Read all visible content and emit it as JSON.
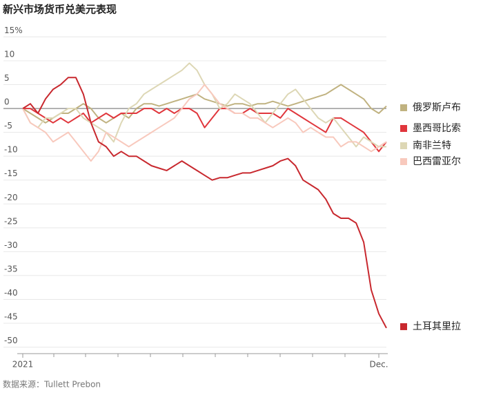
{
  "chart_data": {
    "type": "line",
    "title": "新兴市场货币兑美元表现",
    "source": "数据来源：Tullett Prebon",
    "categories": [
      "2021",
      null,
      null,
      null,
      null,
      null,
      null,
      null,
      null,
      null,
      null,
      null,
      null,
      null,
      null,
      null,
      null,
      null,
      null,
      null,
      null,
      null,
      null,
      null,
      null,
      null,
      null,
      null,
      null,
      null,
      null,
      null,
      null,
      null,
      null,
      null,
      null,
      null,
      null,
      null,
      null,
      null,
      null,
      null,
      null,
      null,
      null,
      "Dec.",
      null
    ],
    "ylim": [
      -51,
      17
    ],
    "yticks": [
      {
        "value": 15,
        "label": "15%"
      },
      10,
      5,
      0,
      -5,
      -10,
      -15,
      -20,
      -25,
      -30,
      -35,
      -40,
      -45,
      -50
    ],
    "grid": true,
    "series": [
      {
        "name": "俄罗斯卢布",
        "color": "#c0b280",
        "values": [
          0,
          -1,
          -2,
          -3,
          -2,
          -1,
          -1,
          0,
          1,
          0,
          -2,
          -3,
          -2,
          -1,
          -2,
          0,
          1,
          1,
          0.5,
          1,
          1.5,
          2,
          2.5,
          3,
          2,
          1.5,
          1,
          0.5,
          1,
          1,
          0.5,
          1,
          1,
          1.5,
          1,
          0.5,
          1,
          1.5,
          2,
          2.5,
          3,
          4,
          5,
          4,
          3,
          2,
          0,
          -1,
          0.5
        ]
      },
      {
        "name": "墨西哥比索",
        "color": "#e0363c",
        "values": [
          0,
          0,
          -1,
          -2,
          -3,
          -2,
          -3,
          -2,
          -1,
          -3,
          -2,
          -1,
          -2,
          -1,
          -1,
          -1,
          0,
          0,
          -1,
          0,
          -1,
          0,
          0,
          -1,
          -4,
          -2,
          0,
          0,
          -1,
          -1,
          0,
          -1,
          -1,
          -1,
          -2,
          0,
          -1,
          -2,
          -3,
          -4,
          -5,
          -2,
          -2,
          -3,
          -4,
          -5,
          -7,
          -9,
          -7
        ]
      },
      {
        "name": "南非兰特",
        "color": "#ddd7b5",
        "values": [
          0,
          -3,
          -4,
          -2,
          -2,
          -1,
          0,
          0,
          -2,
          -3,
          -4,
          -5,
          -7,
          -3,
          0,
          1,
          3,
          4,
          5,
          6,
          7,
          8,
          9.5,
          8,
          5,
          3,
          0,
          1,
          3,
          2,
          1,
          -1,
          -3,
          -1,
          1,
          3,
          4,
          2,
          0,
          -2,
          -3,
          -2,
          -4,
          -6,
          -8,
          -6,
          -7,
          -8,
          -8
        ]
      },
      {
        "name": "巴西雷亚尔",
        "color": "#f8c9bd",
        "values": [
          0,
          -3,
          -4,
          -5,
          -7,
          -6,
          -5,
          -7,
          -9,
          -11,
          -9,
          -5,
          -6,
          -7,
          -8,
          -7,
          -6,
          -5,
          -4,
          -3,
          -2,
          0,
          2,
          3,
          5,
          3,
          1,
          0,
          -1,
          -1,
          -2,
          -2,
          -3,
          -4,
          -3,
          -2,
          -3,
          -5,
          -4,
          -5,
          -6,
          -6,
          -8,
          -7,
          -7,
          -8,
          -9,
          -8,
          -7
        ]
      },
      {
        "name": "土耳其里拉",
        "color": "#c8282e",
        "values": [
          0,
          1,
          -1,
          2,
          4,
          5,
          6.5,
          6.5,
          3,
          -3,
          -7,
          -8,
          -10,
          -9,
          -10,
          -10,
          -11,
          -12,
          -12.5,
          -13,
          -12,
          -11,
          -12,
          -13,
          -14,
          -15,
          -14.5,
          -14.5,
          -14,
          -13.5,
          -13.5,
          -13,
          -12.5,
          -12,
          -11,
          -10.5,
          -12,
          -15,
          -16,
          -17,
          -19,
          -22,
          -23,
          -23,
          -24,
          -28,
          -38,
          -43,
          -46
        ]
      }
    ]
  }
}
